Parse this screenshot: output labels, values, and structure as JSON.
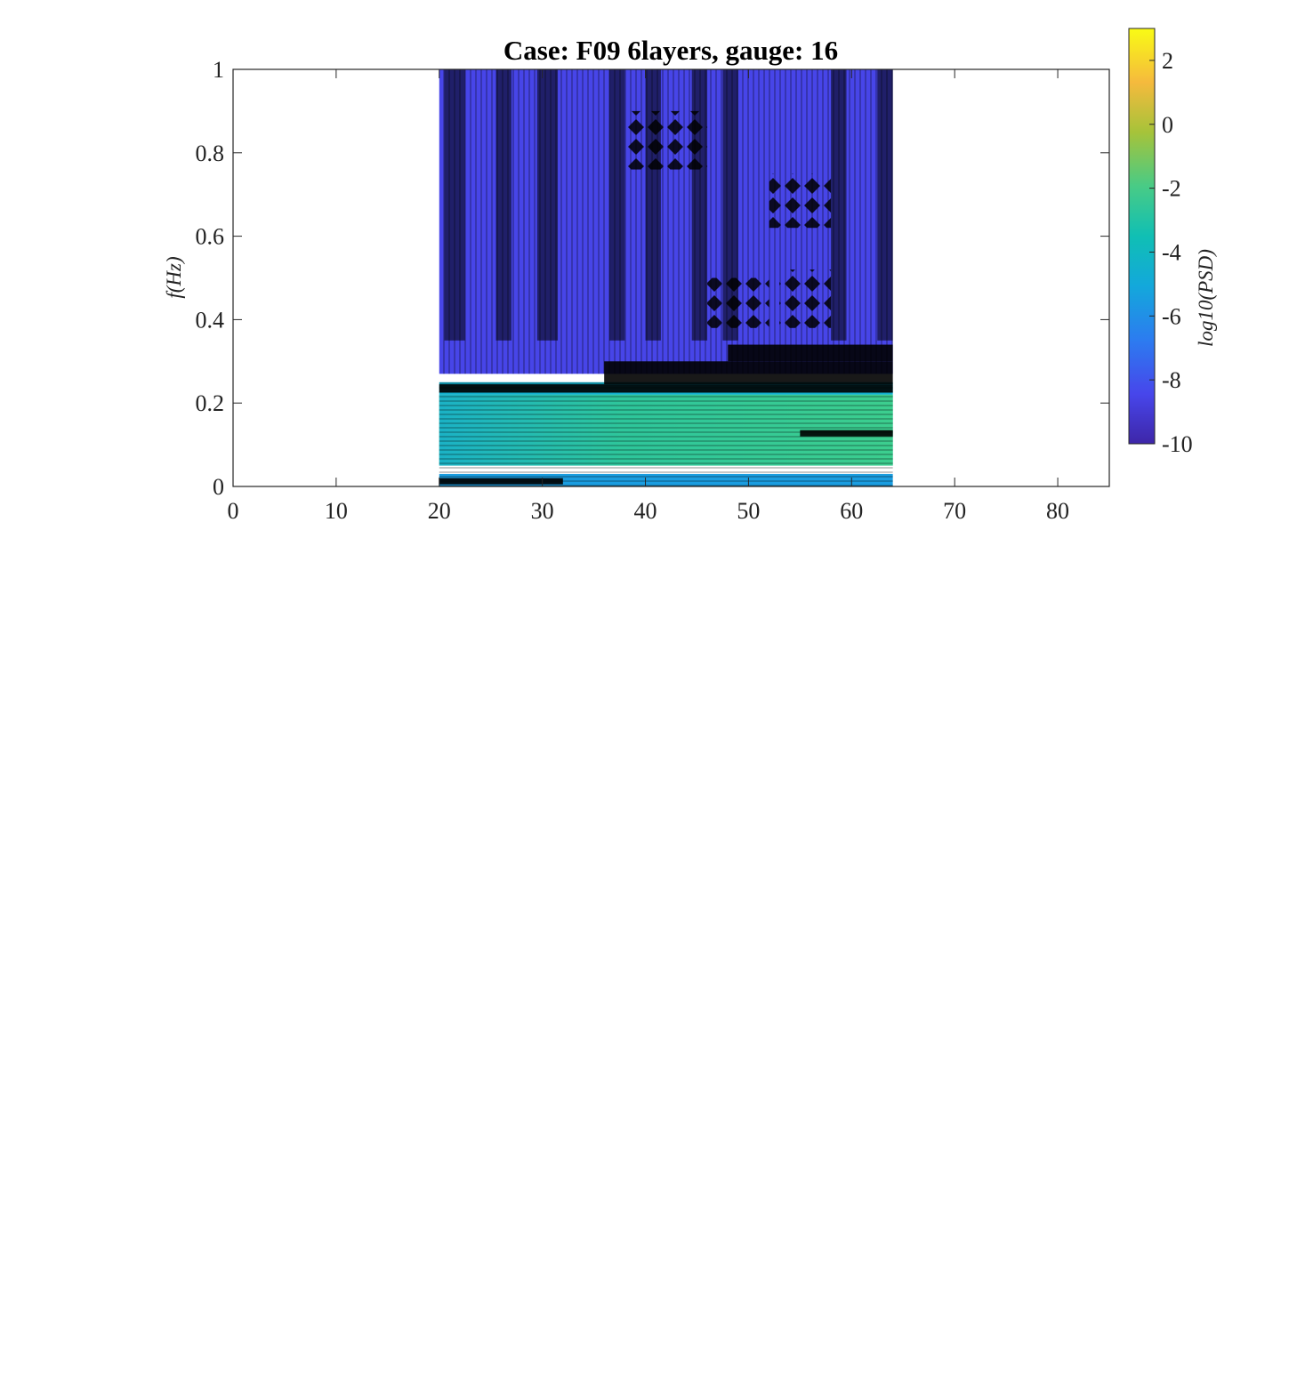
{
  "chart_data": {
    "type": "heatmap",
    "title": "Case: F09 6layers, gauge: 16",
    "xlabel": "",
    "ylabel": "f(Hz)",
    "xlim": [
      0,
      85
    ],
    "ylim": [
      0,
      1
    ],
    "xticks": [
      "0",
      "10",
      "20",
      "30",
      "40",
      "50",
      "60",
      "70",
      "80"
    ],
    "yticks": [
      "0",
      "0.2",
      "0.4",
      "0.6",
      "0.8",
      "1"
    ],
    "data_x_range": [
      20,
      64
    ],
    "colorbar": {
      "label": "log10(PSD)",
      "range": [
        -10,
        3
      ],
      "ticks": [
        "2",
        "0",
        "-2",
        "-4",
        "-6",
        "-8",
        "-10"
      ],
      "colormap": "parula"
    },
    "features": [
      {
        "x": [
          20,
          64
        ],
        "y": [
          0,
          0.03
        ],
        "log10_psd": -5.5
      },
      {
        "x": [
          20,
          64
        ],
        "y": [
          0.05,
          0.22
        ],
        "log10_psd": -3.0
      },
      {
        "x": [
          20,
          64
        ],
        "y": [
          0.22,
          0.25
        ],
        "log10_psd": -4.5
      },
      {
        "x": [
          20,
          64
        ],
        "y": [
          0.27,
          1.0
        ],
        "log10_psd": -8.5
      }
    ],
    "grid": false,
    "legend": "none"
  },
  "colors": {
    "parula_low": "#3e26a8",
    "parula_high": "#f9fb15",
    "contour_line": "#000000",
    "background": "#ffffff"
  }
}
